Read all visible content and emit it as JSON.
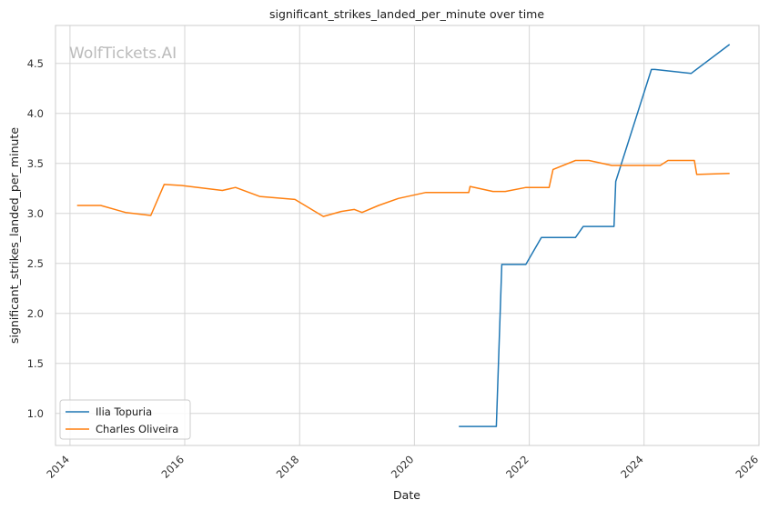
{
  "chart_data": {
    "type": "line",
    "title": "significant_strikes_landed_per_minute over time",
    "xlabel": "Date",
    "ylabel": "significant_strikes_landed_per_minute",
    "watermark": "WolfTickets.AI",
    "xlim": [
      "2013-10-01",
      "2026-01-01"
    ],
    "ylim": [
      0.68,
      4.88
    ],
    "x_ticks": [
      "2014",
      "2016",
      "2018",
      "2020",
      "2022",
      "2024",
      "2026"
    ],
    "y_ticks": [
      "1.0",
      "1.5",
      "2.0",
      "2.5",
      "3.0",
      "3.5",
      "4.0",
      "4.5"
    ],
    "grid": true,
    "legend_position": "lower-left",
    "series": [
      {
        "name": "Ilia Topuria",
        "color": "#1f77b4",
        "points": [
          [
            "2020-10-10",
            0.87
          ],
          [
            "2021-06-05",
            0.87
          ],
          [
            "2021-07-10",
            2.49
          ],
          [
            "2021-12-10",
            2.49
          ],
          [
            "2022-03-19",
            2.76
          ],
          [
            "2022-10-22",
            2.76
          ],
          [
            "2022-12-10",
            2.87
          ],
          [
            "2023-06-24",
            2.87
          ],
          [
            "2023-07-05",
            3.32
          ],
          [
            "2024-02-17",
            4.44
          ],
          [
            "2024-03-10",
            4.44
          ],
          [
            "2024-10-26",
            4.4
          ],
          [
            "2025-06-28",
            4.69
          ]
        ]
      },
      {
        "name": "Charles Oliveira",
        "color": "#ff7f0e",
        "points": [
          [
            "2014-02-15",
            3.08
          ],
          [
            "2014-07-16",
            3.08
          ],
          [
            "2014-12-20",
            3.01
          ],
          [
            "2015-05-30",
            2.98
          ],
          [
            "2015-08-23",
            3.29
          ],
          [
            "2015-12-10",
            3.28
          ],
          [
            "2016-08-27",
            3.23
          ],
          [
            "2016-11-19",
            3.26
          ],
          [
            "2017-04-22",
            3.17
          ],
          [
            "2017-12-02",
            3.14
          ],
          [
            "2018-06-01",
            2.97
          ],
          [
            "2018-09-22",
            3.02
          ],
          [
            "2018-12-15",
            3.04
          ],
          [
            "2019-02-02",
            3.01
          ],
          [
            "2019-05-18",
            3.08
          ],
          [
            "2019-09-21",
            3.15
          ],
          [
            "2020-03-14",
            3.21
          ],
          [
            "2020-12-12",
            3.21
          ],
          [
            "2020-12-20",
            3.27
          ],
          [
            "2021-05-15",
            3.22
          ],
          [
            "2021-08-01",
            3.22
          ],
          [
            "2021-12-11",
            3.26
          ],
          [
            "2022-05-07",
            3.26
          ],
          [
            "2022-06-01",
            3.44
          ],
          [
            "2022-10-22",
            3.53
          ],
          [
            "2023-01-15",
            3.53
          ],
          [
            "2023-06-10",
            3.48
          ],
          [
            "2024-04-13",
            3.48
          ],
          [
            "2024-06-01",
            3.53
          ],
          [
            "2024-11-16",
            3.53
          ],
          [
            "2024-12-01",
            3.39
          ],
          [
            "2025-06-28",
            3.4
          ]
        ]
      }
    ]
  }
}
